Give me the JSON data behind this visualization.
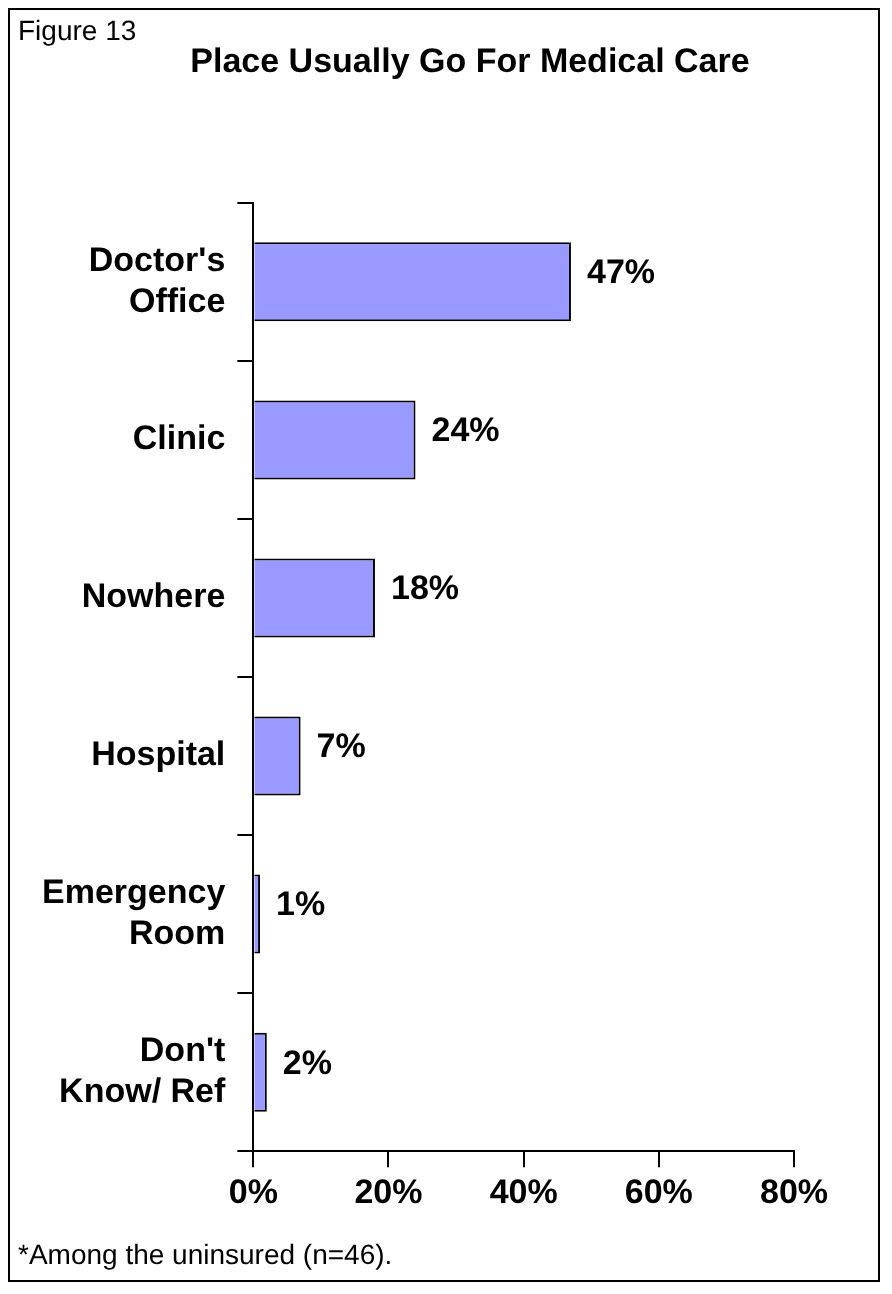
{
  "chart_data": {
    "type": "bar",
    "orientation": "horizontal",
    "title": "Place Usually Go For Medical Care",
    "categories": [
      "Doctor's Office",
      "Clinic",
      "Nowhere",
      "Hospital",
      "Emergency Room",
      "Don't Know/ Ref"
    ],
    "values": [
      47,
      24,
      18,
      7,
      1,
      2
    ],
    "value_labels": [
      "47%",
      "24%",
      "18%",
      "7%",
      "1%",
      "2%"
    ],
    "color": "#9999ff",
    "xlim": [
      0,
      80
    ],
    "xticks": [
      {
        "value": 0,
        "label": "0%"
      },
      {
        "value": 20,
        "label": "20%"
      },
      {
        "value": 40,
        "label": "40%"
      },
      {
        "value": 60,
        "label": "60%"
      },
      {
        "value": 80,
        "label": "80%"
      }
    ],
    "legend": false,
    "annotations": [
      "Figure 13",
      "*Among the uninsured  (n=46)."
    ]
  }
}
